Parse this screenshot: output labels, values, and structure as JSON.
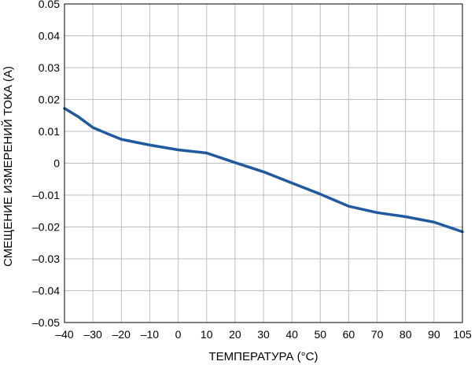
{
  "chart_data": {
    "type": "line",
    "xlabel": "ТЕМПЕРАТУРА (°C)",
    "ylabel": "СМЕЩЕНИЕ ИЗМЕРЕНИЙ ТОКА (A)",
    "xlim": [
      -40,
      105
    ],
    "ylim": [
      -0.05,
      0.05
    ],
    "x_ticks": [
      -40,
      -30,
      -20,
      -10,
      0,
      10,
      20,
      30,
      40,
      50,
      60,
      70,
      80,
      90,
      105
    ],
    "x_tick_labels": [
      "–40",
      "–30",
      "–20",
      "–10",
      "0",
      "10",
      "20",
      "30",
      "40",
      "50",
      "60",
      "70",
      "80",
      "90",
      "105"
    ],
    "y_ticks": [
      0.05,
      0.04,
      0.03,
      0.02,
      0.01,
      0,
      -0.01,
      -0.02,
      -0.03,
      -0.04,
      -0.05
    ],
    "y_tick_labels": [
      "0.05",
      "0.04",
      "0.03",
      "0.02",
      "0.01",
      "0",
      "–0.01",
      "–0.02",
      "–0.03",
      "–0.04",
      "–0.05"
    ],
    "grid": true,
    "line_color": "#1f5aa0",
    "series": [
      {
        "x": [
          -40,
          -35,
          -30,
          -25,
          -20,
          -10,
          0,
          10,
          20,
          30,
          40,
          50,
          60,
          70,
          80,
          90,
          105
        ],
        "y": [
          0.0172,
          0.0145,
          0.0112,
          0.0093,
          0.0075,
          0.0057,
          0.0042,
          0.0032,
          0.0002,
          -0.0027,
          -0.0062,
          -0.0097,
          -0.0135,
          -0.0155,
          -0.0168,
          -0.0185,
          -0.0215
        ]
      }
    ]
  }
}
